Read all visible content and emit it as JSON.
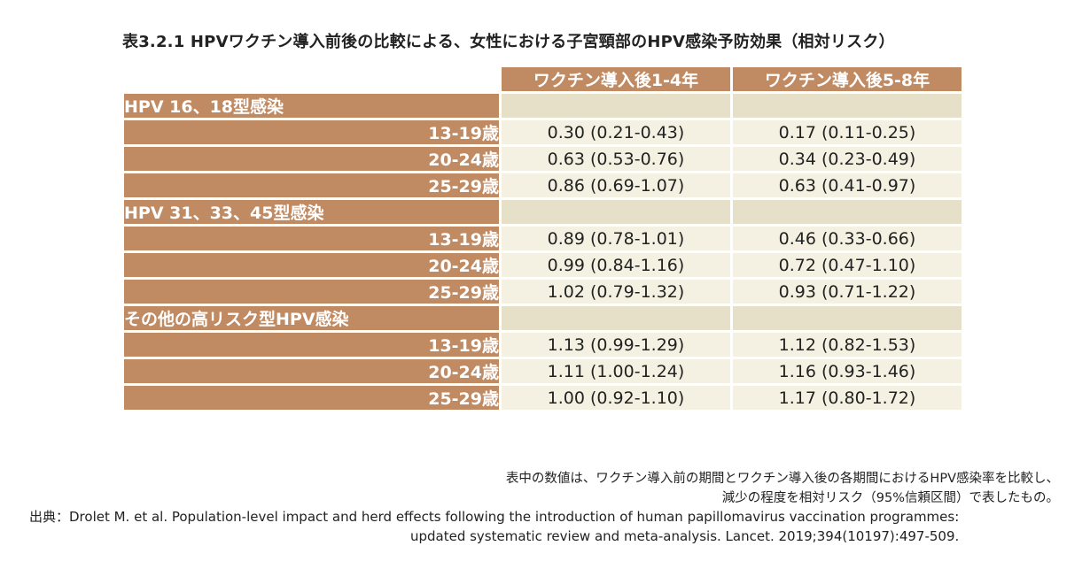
{
  "title": "表3.2.1  HPVワクチン導入前後の比較による、女性における子宮頸部のHPV感染予防効果（相対リスク）",
  "columns": [
    "ワクチン導入後1-4年",
    "ワクチン導入後5-8年"
  ],
  "groups": [
    {
      "label": "HPV 16、18型感染",
      "rows": [
        {
          "age": "13-19歳",
          "v1": "0.30 (0.21-0.43)",
          "v2": "0.17 (0.11-0.25)"
        },
        {
          "age": "20-24歳",
          "v1": "0.63 (0.53-0.76)",
          "v2": "0.34 (0.23-0.49)"
        },
        {
          "age": "25-29歳",
          "v1": "0.86 (0.69-1.07)",
          "v2": "0.63 (0.41-0.97)"
        }
      ]
    },
    {
      "label": "HPV 31、33、45型感染",
      "rows": [
        {
          "age": "13-19歳",
          "v1": "0.89 (0.78-1.01)",
          "v2": "0.46 (0.33-0.66)"
        },
        {
          "age": "20-24歳",
          "v1": "0.99 (0.84-1.16)",
          "v2": "0.72 (0.47-1.10)"
        },
        {
          "age": "25-29歳",
          "v1": "1.02 (0.79-1.32)",
          "v2": "0.93 (0.71-1.22)"
        }
      ]
    },
    {
      "label": "その他の高リスク型HPV感染",
      "rows": [
        {
          "age": "13-19歳",
          "v1": "1.13 (0.99-1.29)",
          "v2": "1.12 (0.82-1.53)"
        },
        {
          "age": "20-24歳",
          "v1": "1.11 (1.00-1.24)",
          "v2": "1.16 (0.93-1.46)"
        },
        {
          "age": "25-29歳",
          "v1": "1.00 (0.92-1.10)",
          "v2": "1.17 (0.80-1.72)"
        }
      ]
    }
  ],
  "notes": [
    "表中の数値は、ワクチン導入前の期間とワクチン導入後の各期間におけるHPV感染率を比較し、",
    "減少の程度を相対リスク（95%信頼区間）で表したもの。"
  ],
  "citation": {
    "line1": "出典：Drolet M. et al. Population-level impact and herd effects following the introduction of human papillomavirus vaccination programmes:",
    "line2": "updated systematic review and meta-analysis. Lancet. 2019;394(10197):497-509."
  },
  "colors": {
    "header_brown": "#c08a63",
    "group_fill": "#e6e0c9",
    "value_cell": "#f5f1e2"
  }
}
